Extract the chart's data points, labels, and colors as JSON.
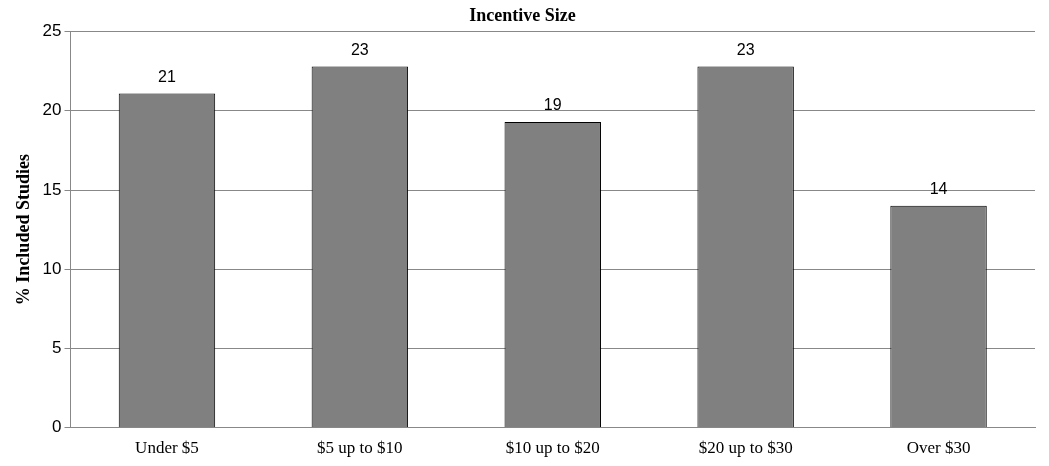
{
  "chart_data": {
    "type": "bar",
    "title": "Incentive Size",
    "ylabel": "% Included Studies",
    "categories": [
      "Under $5",
      "$5 up to $10",
      "$10 up to $20",
      "$20 up to $30",
      "Over $30"
    ],
    "values": [
      21.1,
      22.8,
      19.3,
      22.8,
      14.0
    ],
    "value_labels": [
      "21",
      "23",
      "19",
      "23",
      "14"
    ],
    "color": "#808080",
    "ylim": [
      0,
      25
    ],
    "yticks": [
      0,
      5,
      10,
      15,
      20,
      25
    ],
    "grid": "y",
    "legend": false
  }
}
